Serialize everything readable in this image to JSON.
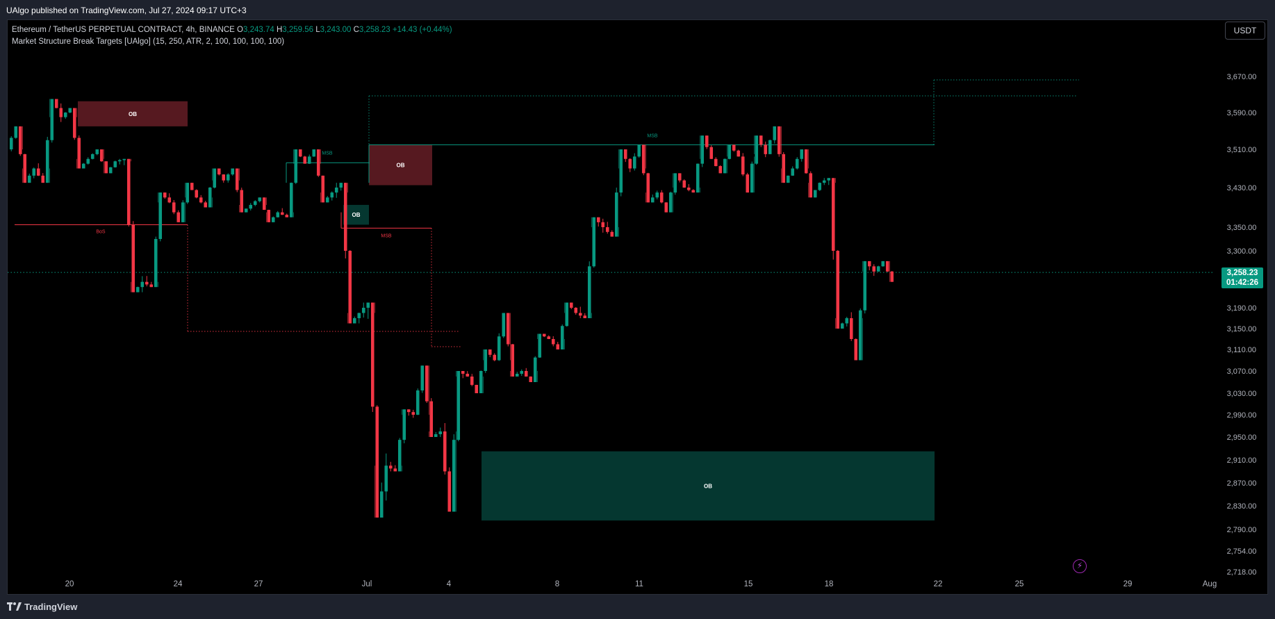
{
  "header": {
    "publisher_line": "UAlgo published on TradingView.com, Jul 27, 2024 09:17 UTC+3"
  },
  "legend": {
    "symbol": "Ethereum / TetherUS PERPETUAL CONTRACT, 4h, BINANCE",
    "o_label": "O",
    "o_value": "3,243.74",
    "h_label": "H",
    "h_value": "3,259.56",
    "l_label": "L",
    "l_value": "3,243.00",
    "c_label": "C",
    "c_value": "3,258.23",
    "change": "+14.43 (+0.44%)",
    "indicator": "Market Structure Break Targets [UAlgo] (15, 250, ATR, 2, 100, 100, 100, 100)"
  },
  "currency_button": "USDT",
  "price_badge": {
    "price": "3,258.23",
    "countdown": "01:42:26"
  },
  "footer": {
    "brand": "TradingView"
  },
  "icons": {
    "alert": "lightning-icon",
    "brand": "tradingview-logo-icon"
  },
  "colors": {
    "up": "#089981",
    "down": "#f23645",
    "ob_bear": "#5b1a22",
    "ob_bull": "#053a33",
    "background": "#000000"
  },
  "chart_data": {
    "type": "candlestick",
    "interval": "4h",
    "y_ticks": [
      "3,670.00",
      "3,590.00",
      "3,510.00",
      "3,430.00",
      "3,350.00",
      "3,300.00",
      "3,190.00",
      "3,150.00",
      "3,110.00",
      "3,070.00",
      "3,030.00",
      "2,990.00",
      "2,950.00",
      "2,910.00",
      "2,870.00",
      "2,830.00",
      "2,790.00",
      "2,754.00",
      "2,718.00"
    ],
    "x_ticks": [
      "20",
      "24",
      "27",
      "Jul",
      "4",
      "8",
      "11",
      "15",
      "18",
      "22",
      "25",
      "29",
      "Aug"
    ],
    "last_price": 3258.23,
    "daily_ohlc": [
      [
        3510,
        3560,
        3440,
        3470
      ],
      [
        3470,
        3620,
        3440,
        3580
      ],
      [
        3580,
        3600,
        3470,
        3490
      ],
      [
        3490,
        3510,
        3460,
        3485
      ],
      [
        3485,
        3490,
        3220,
        3240
      ],
      [
        3240,
        3420,
        3230,
        3400
      ],
      [
        3400,
        3440,
        3360,
        3410
      ],
      [
        3410,
        3470,
        3390,
        3445
      ],
      [
        3445,
        3470,
        3380,
        3395
      ],
      [
        3395,
        3410,
        3360,
        3380
      ],
      [
        3380,
        3510,
        3370,
        3480
      ],
      [
        3480,
        3510,
        3400,
        3420
      ],
      [
        3420,
        3440,
        3160,
        3180
      ],
      [
        3180,
        3200,
        2810,
        2900
      ],
      [
        2900,
        3000,
        2890,
        2990
      ],
      [
        2990,
        3080,
        2950,
        2960
      ],
      [
        2960,
        3070,
        2820,
        3060
      ],
      [
        3060,
        3110,
        3030,
        3090
      ],
      [
        3090,
        3180,
        3060,
        3070
      ],
      [
        3070,
        3140,
        3050,
        3130
      ],
      [
        3130,
        3200,
        3110,
        3180
      ],
      [
        3180,
        3370,
        3170,
        3350
      ],
      [
        3350,
        3510,
        3330,
        3470
      ],
      [
        3470,
        3520,
        3400,
        3420
      ],
      [
        3420,
        3460,
        3380,
        3430
      ],
      [
        3430,
        3540,
        3420,
        3490
      ],
      [
        3490,
        3520,
        3460,
        3495
      ],
      [
        3495,
        3540,
        3420,
        3500
      ],
      [
        3500,
        3560,
        3440,
        3470
      ],
      [
        3470,
        3510,
        3410,
        3440
      ],
      [
        3440,
        3450,
        3150,
        3170
      ],
      [
        3170,
        3280,
        3090,
        3260
      ],
      [
        3260,
        3280,
        3240,
        3258
      ]
    ],
    "annotations": [
      {
        "type": "order_block",
        "label": "OB",
        "bias": "bearish",
        "top": 3615,
        "bottom": 3560
      },
      {
        "type": "order_block",
        "label": "OB",
        "bias": "bearish",
        "top": 3520,
        "bottom": 3435
      },
      {
        "type": "order_block",
        "label": "OB",
        "bias": "bullish",
        "top": 3395,
        "bottom": 3355
      },
      {
        "type": "order_block",
        "label": "OB",
        "bias": "bullish",
        "top": 2925,
        "bottom": 2805
      },
      {
        "type": "structure",
        "label": "BoS",
        "level": 3355
      },
      {
        "type": "structure",
        "label": "MSB",
        "level": 3482
      },
      {
        "type": "structure",
        "label": "MSB",
        "level": 3348
      },
      {
        "type": "structure",
        "label": "MSB",
        "level": 3520
      }
    ]
  }
}
